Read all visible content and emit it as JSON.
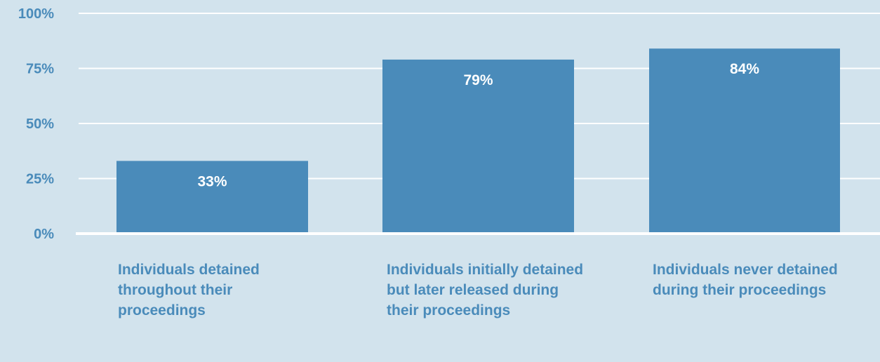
{
  "chart_data": {
    "type": "bar",
    "categories": [
      "Individuals detained throughout their proceedings",
      "Individuals initially detained but later released during their proceedings",
      "Individuals never detained during their proceedings"
    ],
    "values": [
      33,
      79,
      84
    ],
    "data_labels": [
      "33%",
      "79%",
      "84%"
    ],
    "ylim": [
      0,
      100
    ],
    "yticks": [
      0,
      25,
      50,
      75,
      100
    ],
    "ytick_labels": [
      "0%",
      "25%",
      "50%",
      "75%",
      "100%"
    ],
    "grid": true,
    "legend": "none",
    "title": "",
    "xlabel": "",
    "ylabel": ""
  },
  "colors": {
    "background": "#d2e3ed",
    "bar": "#4a8bba",
    "gridline": "#ffffff",
    "axis_text": "#4a8bba",
    "bar_label_text": "#ffffff"
  }
}
